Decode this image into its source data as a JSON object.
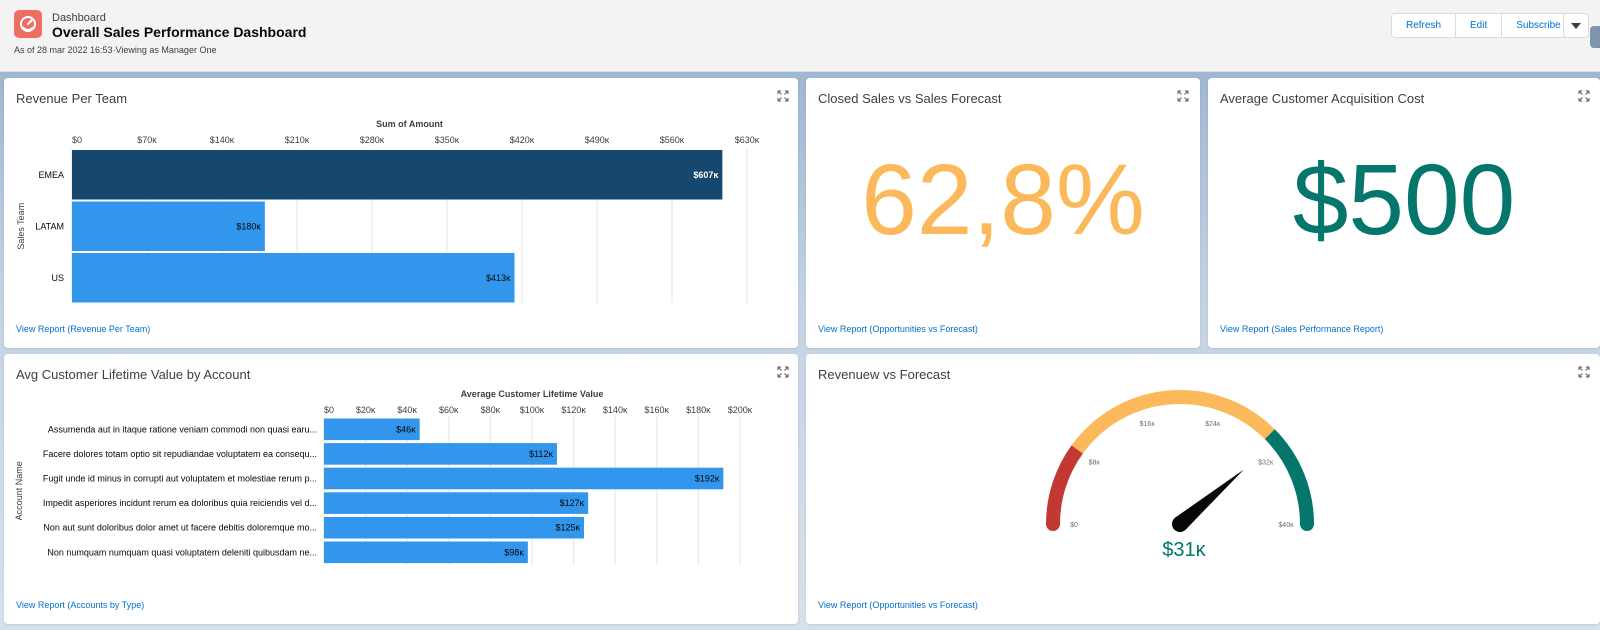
{
  "header": {
    "eyebrow": "Dashboard",
    "title": "Overall Sales Performance Dashboard",
    "subtitle": "As of 28 mar 2022 16:53·Viewing as Manager One",
    "buttons": {
      "refresh": "Refresh",
      "edit": "Edit",
      "subscribe": "Subscribe"
    },
    "icon": "dashboard-icon"
  },
  "cards": {
    "revenue_per_team": {
      "title": "Revenue Per Team",
      "link": "View Report (Revenue Per Team)"
    },
    "closed_vs_forecast": {
      "title": "Closed Sales vs Sales Forecast",
      "link": "View Report (Opportunities vs Forecast)",
      "value": "62,8%",
      "color": "#fcb95b"
    },
    "acquisition_cost": {
      "title": "Average Customer Acquisition Cost",
      "link": "View Report (Sales Performance Report)",
      "value": "$500",
      "color": "#04766b"
    },
    "lifetime_value": {
      "title": "Avg Customer Lifetime Value by Account",
      "link": "View Report (Accounts by Type)"
    },
    "revenue_vs_forecast": {
      "title": "Revenuew vs Forecast",
      "link": "View Report (Opportunities vs Forecast)",
      "value": "$31ĸ"
    }
  },
  "chart_data": [
    {
      "type": "bar",
      "orientation": "horizontal",
      "title": "Sum of Amount",
      "xlabel": "Sum of Amount",
      "ylabel": "Sales Team",
      "categories": [
        "EMEA",
        "LATAM",
        "US"
      ],
      "values": [
        607,
        180,
        413
      ],
      "value_labels": [
        "$607ĸ",
        "$180ĸ",
        "$413ĸ"
      ],
      "xlim": [
        0,
        630
      ],
      "ticks": [
        0,
        70,
        140,
        210,
        280,
        350,
        420,
        490,
        560,
        630
      ],
      "tick_labels": [
        "$0",
        "$70ĸ",
        "$140ĸ",
        "$210ĸ",
        "$280ĸ",
        "$350ĸ",
        "$420ĸ",
        "$490ĸ",
        "$560ĸ",
        "$630ĸ"
      ],
      "colors": [
        "#16486f",
        "#3296ed",
        "#3296ed"
      ],
      "grid": true
    },
    {
      "type": "bar",
      "orientation": "horizontal",
      "title": "Average Customer Lifetime Value",
      "xlabel": "Average Customer Lifetime Value",
      "ylabel": "Account Name",
      "categories": [
        "Assumenda aut in itaque ratione veniam commodi non quasi earu...",
        "Facere dolores totam optio sit repudiandae voluptatem ea consequ...",
        "Fugit unde id minus in corrupti aut voluptatem et molestiae rerum p...",
        "Impedit asperiores incidunt rerum ea doloribus quia reiciendis vel d...",
        "Non aut sunt doloribus dolor amet ut facere debitis doloremque mo...",
        "Non numquam numquam quasi voluptatem deleniti quibusdam ne..."
      ],
      "values": [
        46,
        112,
        192,
        127,
        125,
        98
      ],
      "value_labels": [
        "$46ĸ",
        "$112ĸ",
        "$192ĸ",
        "$127ĸ",
        "$125ĸ",
        "$98ĸ"
      ],
      "xlim": [
        0,
        200
      ],
      "ticks": [
        0,
        20,
        40,
        60,
        80,
        100,
        120,
        140,
        160,
        180,
        200
      ],
      "tick_labels": [
        "$0",
        "$20ĸ",
        "$40ĸ",
        "$60ĸ",
        "$80ĸ",
        "$100ĸ",
        "$120ĸ",
        "$140ĸ",
        "$160ĸ",
        "$180ĸ",
        "$200ĸ"
      ],
      "colors": [
        "#3296ed"
      ],
      "grid": true
    },
    {
      "type": "gauge",
      "value": 31,
      "value_label": "$31ĸ",
      "range": [
        0,
        40
      ],
      "ticks": [
        0,
        8,
        16,
        24,
        32,
        40
      ],
      "tick_labels": [
        "$0",
        "$8ĸ",
        "$16ĸ",
        "$24ĸ",
        "$32ĸ",
        "$40ĸ"
      ],
      "bands": [
        {
          "from": 0,
          "to": 8,
          "color": "#c23934"
        },
        {
          "from": 8,
          "to": 30,
          "color": "#fcb95b"
        },
        {
          "from": 30,
          "to": 40,
          "color": "#04766b"
        }
      ]
    }
  ]
}
